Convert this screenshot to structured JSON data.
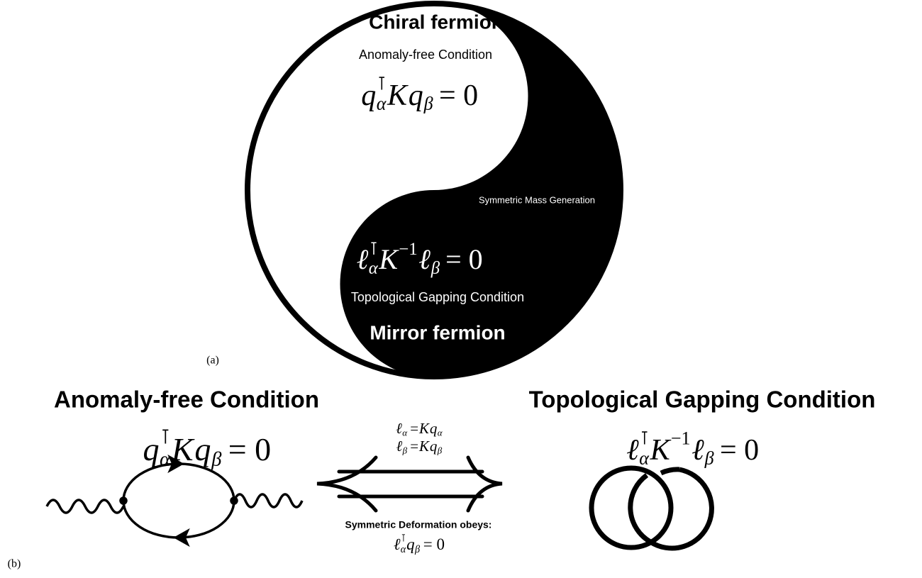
{
  "panel_a": {
    "label": "(a)",
    "top_title": "Chiral fermion",
    "top_subtitle": "Anomaly-free Condition",
    "top_equation": [
      {
        "base": "q",
        "sup": "⊺",
        "sub": "α"
      },
      {
        "base": "K"
      },
      {
        "base": "q",
        "sub": "β"
      },
      {
        "base": "= 0"
      }
    ],
    "middle_label": "Symmetric Mass Generation",
    "bottom_equation": [
      {
        "base": "ℓ",
        "sup": "⊺",
        "sub": "α"
      },
      {
        "base": "K",
        "sup": "−1"
      },
      {
        "base": "ℓ",
        "sub": "β"
      },
      {
        "base": "= 0"
      }
    ],
    "bottom_subtitle": "Topological Gapping Condition",
    "bottom_title": "Mirror fermion"
  },
  "panel_b": {
    "label": "(b)",
    "left_title": "Anomaly-free Condition",
    "left_equation": [
      {
        "base": "q",
        "sup": "⊺",
        "sub": "α"
      },
      {
        "base": "K"
      },
      {
        "base": "q",
        "sub": "β"
      },
      {
        "base": "= 0"
      }
    ],
    "arrow_equations": [
      [
        {
          "base": "ℓ",
          "sub": "α"
        },
        {
          "base": "="
        },
        {
          "base": "K"
        },
        {
          "base": "q",
          "sub": "α"
        }
      ],
      [
        {
          "base": "ℓ",
          "sub": "β"
        },
        {
          "base": "="
        },
        {
          "base": "K"
        },
        {
          "base": "q",
          "sub": "β"
        }
      ]
    ],
    "arrow_caption": "Symmetric Deformation obeys:",
    "arrow_equation": [
      {
        "base": "ℓ",
        "sup": "⊺",
        "sub": "α"
      },
      {
        "base": "q",
        "sub": "β"
      },
      {
        "base": "= 0"
      }
    ],
    "right_title": "Topological Gapping Condition",
    "right_equation": [
      {
        "base": "ℓ",
        "sup": "⊺",
        "sub": "α"
      },
      {
        "base": "K",
        "sup": "−1"
      },
      {
        "base": "ℓ",
        "sub": "β"
      },
      {
        "base": "= 0"
      }
    ]
  }
}
